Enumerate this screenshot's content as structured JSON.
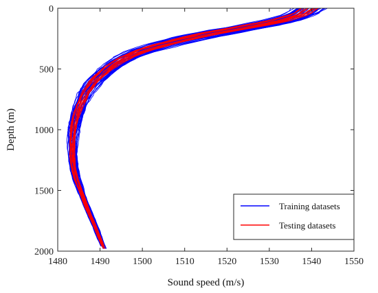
{
  "chart_data": {
    "type": "line",
    "title": "",
    "xlabel": "Sound speed (m/s)",
    "ylabel": "Depth (m)",
    "xlim": [
      1480,
      1550
    ],
    "ylim": [
      0,
      2000
    ],
    "y_reversed": true,
    "x_axis_position": "top-and-bottom",
    "xticks": [
      1480,
      1490,
      1500,
      1510,
      1520,
      1530,
      1540,
      1550
    ],
    "yticks": [
      0,
      500,
      1000,
      1500,
      2000
    ],
    "xtick_labels": [
      "1480",
      "1490",
      "1500",
      "1510",
      "1520",
      "1530",
      "1540",
      "1550"
    ],
    "ytick_labels": [
      "0",
      "500",
      "1000",
      "1500",
      "2000"
    ],
    "grid": false,
    "legend_position": "bottom-right",
    "series": [
      {
        "name": "Training datasets",
        "color": "#0000FF",
        "profile_count": 40,
        "mean_profile": {
          "depth": [
            0,
            50,
            100,
            150,
            200,
            250,
            300,
            350,
            400,
            450,
            500,
            600,
            700,
            800,
            900,
            1000,
            1100,
            1200,
            1300,
            1400,
            1500,
            1600,
            1700,
            1800,
            1900,
            1980
          ],
          "speed": [
            1539.5,
            1537.5,
            1533.0,
            1526.0,
            1518.0,
            1511.0,
            1505.0,
            1500.0,
            1496.5,
            1494.0,
            1492.0,
            1488.8,
            1486.6,
            1485.3,
            1484.4,
            1483.8,
            1483.5,
            1483.5,
            1483.8,
            1484.4,
            1485.4,
            1486.5,
            1487.7,
            1488.9,
            1490.0,
            1491.0
          ]
        },
        "spread": [
          4.0,
          4.0,
          4.6,
          5.0,
          5.0,
          4.6,
          4.0,
          3.5,
          3.0,
          2.6,
          2.4,
          2.0,
          1.8,
          1.6,
          1.5,
          1.3,
          1.2,
          1.1,
          1.0,
          0.9,
          0.8,
          0.7,
          0.7,
          0.6,
          0.6,
          0.5
        ]
      },
      {
        "name": "Testing datasets",
        "color": "#FF0000",
        "profile_count": 15,
        "mean_profile": {
          "depth": [
            0,
            50,
            100,
            150,
            200,
            250,
            300,
            350,
            400,
            450,
            500,
            600,
            700,
            800,
            900,
            1000,
            1100,
            1200,
            1300,
            1400,
            1500,
            1600,
            1700,
            1800,
            1900,
            1980
          ],
          "speed": [
            1539.5,
            1537.5,
            1533.0,
            1526.0,
            1518.0,
            1511.0,
            1505.0,
            1500.0,
            1496.5,
            1494.0,
            1492.0,
            1488.8,
            1486.6,
            1485.3,
            1484.4,
            1483.8,
            1483.5,
            1483.5,
            1483.8,
            1484.4,
            1485.4,
            1486.5,
            1487.7,
            1488.9,
            1490.0,
            1491.0
          ]
        },
        "spread": [
          2.5,
          2.5,
          3.0,
          3.3,
          3.3,
          3.0,
          2.6,
          2.2,
          1.9,
          1.7,
          1.5,
          1.3,
          1.1,
          1.0,
          0.9,
          0.8,
          0.7,
          0.7,
          0.6,
          0.6,
          0.5,
          0.5,
          0.4,
          0.4,
          0.4,
          0.3
        ]
      }
    ],
    "legend": [
      {
        "label": "Training datasets",
        "color": "#0000FF"
      },
      {
        "label": "Testing datasets",
        "color": "#FF0000"
      }
    ]
  }
}
